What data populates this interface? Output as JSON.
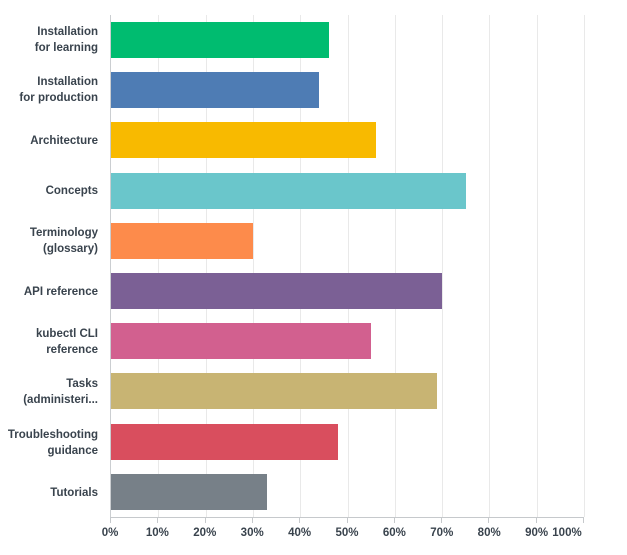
{
  "chart_data": {
    "type": "bar",
    "orientation": "horizontal",
    "title": "",
    "xlabel": "",
    "ylabel": "",
    "xlim": [
      0,
      100
    ],
    "x_ticks": [
      0,
      10,
      20,
      30,
      40,
      50,
      60,
      70,
      80,
      90,
      100
    ],
    "x_tick_labels": [
      "0%",
      "10%",
      "20%",
      "30%",
      "40%",
      "50%",
      "60%",
      "70%",
      "80%",
      "90%",
      "100%"
    ],
    "grid": "vertical",
    "legend": "none",
    "categories": [
      "Installation for learning",
      "Installation for production",
      "Architecture",
      "Concepts",
      "Terminology (glossary)",
      "API reference",
      "kubectl CLI reference",
      "Tasks (administeri...",
      "Troubleshooting guidance",
      "Tutorials"
    ],
    "category_display_lines": [
      [
        "Installation",
        "for learning"
      ],
      [
        "Installation",
        "for production"
      ],
      [
        "Architecture"
      ],
      [
        "Concepts"
      ],
      [
        "Terminology",
        "(glossary)"
      ],
      [
        "API reference"
      ],
      [
        "kubectl CLI",
        "reference"
      ],
      [
        "Tasks",
        "(administeri..."
      ],
      [
        "Troubleshooting",
        "guidance"
      ],
      [
        "Tutorials"
      ]
    ],
    "values": [
      46,
      44,
      56,
      75,
      30,
      70,
      55,
      69,
      48,
      33
    ],
    "bar_colors": [
      "#00BC70",
      "#4E7CB4",
      "#F8BA00",
      "#6AC6CB",
      "#FD8B4B",
      "#7B6095",
      "#D2608F",
      "#C8B473",
      "#D94E5E",
      "#778088"
    ]
  },
  "colors": {
    "background": "#FFFFFF",
    "gridline": "#E9E9E9",
    "axis_line": "#C6C9CC",
    "label_text": "#39434D"
  }
}
